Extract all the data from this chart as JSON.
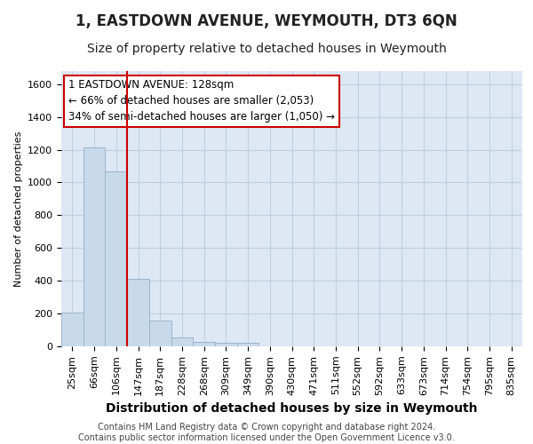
{
  "title": "1, EASTDOWN AVENUE, WEYMOUTH, DT3 6QN",
  "subtitle": "Size of property relative to detached houses in Weymouth",
  "xlabel": "Distribution of detached houses by size in Weymouth",
  "ylabel": "Number of detached properties",
  "categories": [
    "25sqm",
    "66sqm",
    "106sqm",
    "147sqm",
    "187sqm",
    "228sqm",
    "268sqm",
    "309sqm",
    "349sqm",
    "390sqm",
    "430sqm",
    "471sqm",
    "511sqm",
    "552sqm",
    "592sqm",
    "633sqm",
    "673sqm",
    "714sqm",
    "754sqm",
    "795sqm",
    "835sqm"
  ],
  "values": [
    205,
    1215,
    1070,
    410,
    158,
    53,
    28,
    20,
    20,
    0,
    0,
    0,
    0,
    0,
    0,
    0,
    0,
    0,
    0,
    0,
    0
  ],
  "bar_color": "#c8d9ea",
  "bar_edge_color": "#9ab4cc",
  "vline_x": 3.0,
  "vline_color": "#cc0000",
  "annotation_text": "1 EASTDOWN AVENUE: 128sqm\n← 66% of detached houses are smaller (2,053)\n34% of semi-detached houses are larger (1,050) →",
  "annotation_box_color": "#ffffff",
  "annotation_box_edge": "#cc0000",
  "ylim": [
    0,
    1680
  ],
  "yticks": [
    0,
    200,
    400,
    600,
    800,
    1000,
    1200,
    1400,
    1600
  ],
  "grid_color": "#c0cfe0",
  "background_color": "#dde8f4",
  "footer": "Contains HM Land Registry data © Crown copyright and database right 2024.\nContains public sector information licensed under the Open Government Licence v3.0.",
  "title_fontsize": 12,
  "subtitle_fontsize": 10,
  "xlabel_fontsize": 10,
  "ylabel_fontsize": 8,
  "tick_fontsize": 8,
  "annotation_fontsize": 8.5,
  "footer_fontsize": 7
}
